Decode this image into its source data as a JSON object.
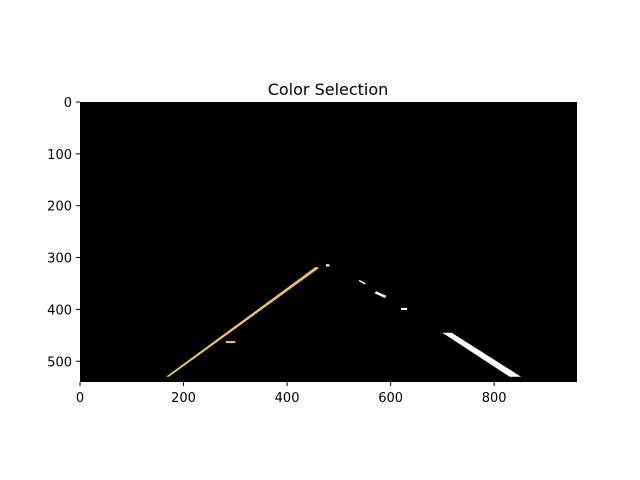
{
  "chart_data": {
    "type": "image",
    "title": "Color Selection",
    "xlabel": "",
    "ylabel": "",
    "xlim": [
      0,
      960
    ],
    "ylim": [
      540,
      0
    ],
    "x_ticks": [
      0,
      200,
      400,
      600,
      800
    ],
    "y_ticks": [
      0,
      100,
      200,
      300,
      400,
      500
    ],
    "grid": false,
    "background_color": "#000000",
    "marks": [
      {
        "name": "left-lane-line",
        "color": "#e8c272",
        "points": [
          [
            172,
            530
          ],
          [
            462,
            320
          ],
          [
            455,
            318
          ],
          [
            166,
            530
          ]
        ]
      },
      {
        "name": "left-lane-blob",
        "color": "#e8c272",
        "points": [
          [
            282,
            461
          ],
          [
            300,
            461
          ],
          [
            300,
            465
          ],
          [
            282,
            465
          ]
        ]
      },
      {
        "name": "right-lane-segment-far-1",
        "color": "#ffffff",
        "points": [
          [
            475,
            313
          ],
          [
            482,
            313
          ],
          [
            482,
            317
          ],
          [
            475,
            317
          ]
        ]
      },
      {
        "name": "right-lane-segment-far-2",
        "color": "#ffffff",
        "points": [
          [
            540,
            343
          ],
          [
            552,
            350
          ],
          [
            550,
            352
          ],
          [
            538,
            345
          ]
        ]
      },
      {
        "name": "right-lane-segment-mid",
        "color": "#ffffff",
        "points": [
          [
            572,
            365
          ],
          [
            592,
            374
          ],
          [
            589,
            378
          ],
          [
            569,
            369
          ]
        ]
      },
      {
        "name": "right-lane-segment-dash",
        "color": "#ffffff",
        "points": [
          [
            620,
            397
          ],
          [
            632,
            397
          ],
          [
            632,
            401
          ],
          [
            620,
            401
          ]
        ]
      },
      {
        "name": "right-lane-segment-near",
        "color": "#ffffff",
        "points": [
          [
            700,
            445
          ],
          [
            718,
            445
          ],
          [
            852,
            530
          ],
          [
            830,
            530
          ]
        ]
      }
    ]
  }
}
